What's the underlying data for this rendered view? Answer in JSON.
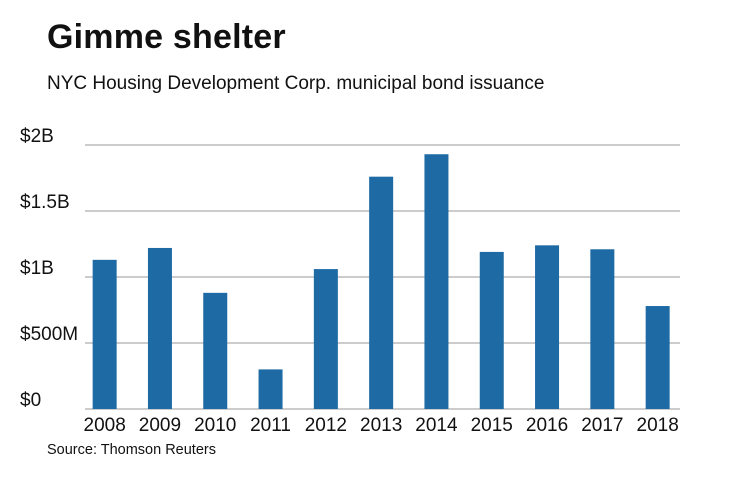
{
  "title": "Gimme shelter",
  "subtitle": "NYC Housing Development Corp. municipal bond issuance",
  "source": "Source: Thomson Reuters",
  "chart_data": {
    "type": "bar",
    "categories": [
      "2008",
      "2009",
      "2010",
      "2011",
      "2012",
      "2013",
      "2014",
      "2015",
      "2016",
      "2017",
      "2018"
    ],
    "values": [
      1.13,
      1.22,
      0.88,
      0.3,
      1.06,
      1.76,
      1.93,
      1.19,
      1.24,
      1.21,
      0.78
    ],
    "unit": "billions USD",
    "ylim": [
      0,
      2
    ],
    "yticks": [
      0,
      0.5,
      1,
      1.5,
      2
    ],
    "ytick_labels": [
      "$0",
      "$500M",
      "$1B",
      "$1.5B",
      "$2B"
    ],
    "grid": true,
    "bar_color": "#1d6aa4",
    "grid_color": "#999999"
  }
}
